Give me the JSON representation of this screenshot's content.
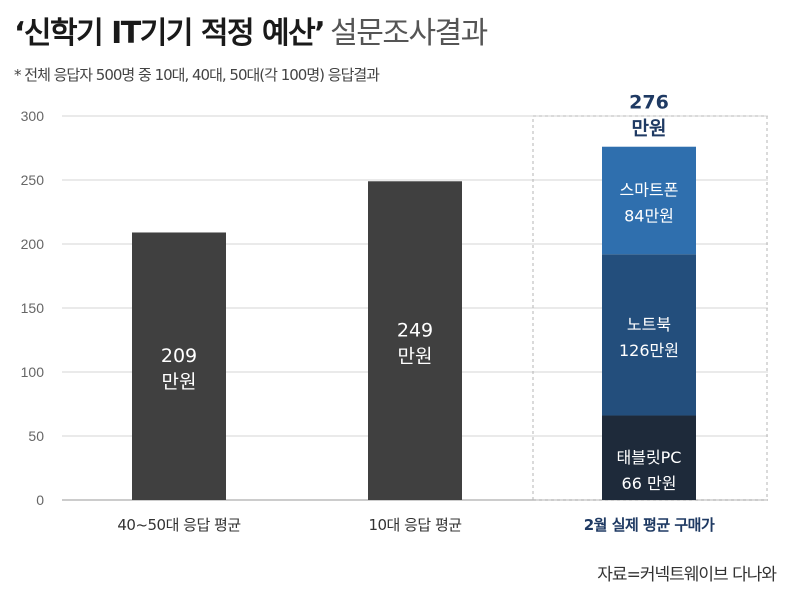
{
  "header": {
    "title_bold": "‘신학기 IT기기 적정 예산’",
    "title_light": "설문조사결과",
    "subtitle": "* 전체 응답자 500명 중 10대, 40대, 50대(각 100명) 응답결과"
  },
  "footer": {
    "source": "자료=커넥트웨이브 다나와"
  },
  "colors": {
    "gray_bar": "#404040",
    "smartphone": "#2f6fae",
    "notebook": "#234e7c",
    "tablet": "#1e2a3a",
    "accent": "#1f3a63"
  },
  "chart_data": {
    "type": "bar",
    "ylim": [
      0,
      300
    ],
    "yticks": [
      "0",
      "50",
      "100",
      "150",
      "200",
      "250",
      "300"
    ],
    "categories": [
      "40~50대 응답 평균",
      "10대 응답 평균",
      "2월 실제 평균 구매가"
    ],
    "bars": [
      {
        "category": "40~50대 응답 평균",
        "value": 209,
        "label": [
          "209",
          "만원"
        ]
      },
      {
        "category": "10대 응답 평균",
        "value": 249,
        "label": [
          "249",
          "만원"
        ]
      },
      {
        "category": "2월 실제 평균 구매가",
        "value": 276,
        "label": [
          "276",
          "만원"
        ],
        "segments": [
          {
            "name": "태블릿PC",
            "value": 66,
            "label": [
              "태블릿PC",
              "66 만원"
            ]
          },
          {
            "name": "노트북",
            "value": 126,
            "label": [
              "노트북",
              "126만원"
            ]
          },
          {
            "name": "스마트폰",
            "value": 84,
            "label": [
              "스마트폰",
              "84만원"
            ]
          }
        ]
      }
    ]
  }
}
